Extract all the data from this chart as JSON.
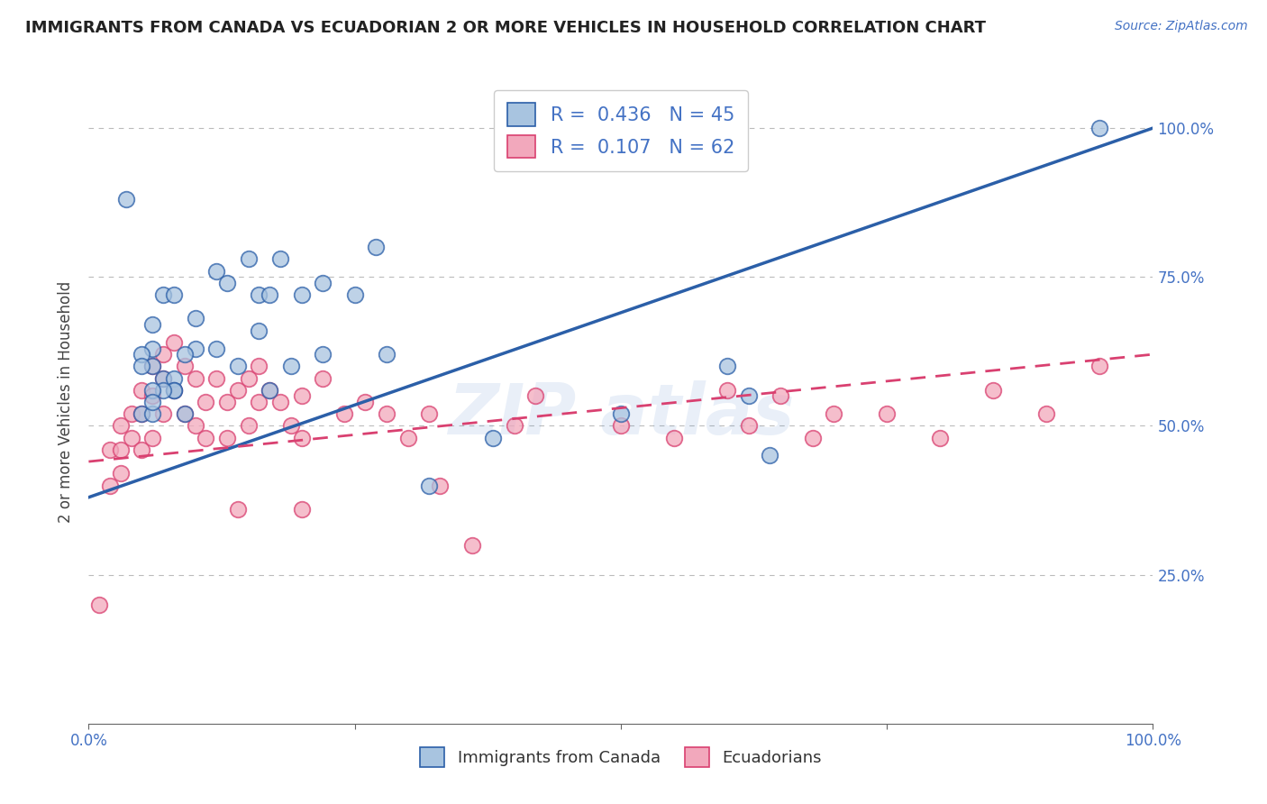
{
  "title": "IMMIGRANTS FROM CANADA VS ECUADORIAN 2 OR MORE VEHICLES IN HOUSEHOLD CORRELATION CHART",
  "source": "Source: ZipAtlas.com",
  "ylabel": "2 or more Vehicles in Household",
  "watermark": "ZIPAtlas",
  "legend1_label": "R =  0.436   N = 45",
  "legend2_label": "R =  0.107   N = 62",
  "dot1_color": "#a8c4e0",
  "dot2_color": "#f2a8bc",
  "line1_color": "#2b5fa8",
  "line2_color": "#d94070",
  "tick_color": "#4472c4",
  "title_color": "#222222",
  "ylabel_color": "#444444",
  "blue_x": [
    0.035,
    0.06,
    0.07,
    0.08,
    0.06,
    0.06,
    0.07,
    0.08,
    0.1,
    0.1,
    0.08,
    0.09,
    0.12,
    0.13,
    0.15,
    0.16,
    0.17,
    0.18,
    0.2,
    0.22,
    0.25,
    0.27,
    0.08,
    0.09,
    0.05,
    0.06,
    0.07,
    0.14,
    0.17,
    0.19,
    0.12,
    0.16,
    0.22,
    0.28,
    0.32,
    0.38,
    0.5,
    0.6,
    0.62,
    0.64,
    0.95,
    0.05,
    0.05,
    0.06,
    0.06
  ],
  "blue_y": [
    0.88,
    0.67,
    0.72,
    0.72,
    0.63,
    0.6,
    0.58,
    0.58,
    0.68,
    0.63,
    0.56,
    0.62,
    0.76,
    0.74,
    0.78,
    0.72,
    0.72,
    0.78,
    0.72,
    0.74,
    0.72,
    0.8,
    0.56,
    0.52,
    0.52,
    0.52,
    0.56,
    0.6,
    0.56,
    0.6,
    0.63,
    0.66,
    0.62,
    0.62,
    0.4,
    0.48,
    0.52,
    0.6,
    0.55,
    0.45,
    1.0,
    0.62,
    0.6,
    0.56,
    0.54
  ],
  "pink_x": [
    0.01,
    0.02,
    0.02,
    0.03,
    0.03,
    0.03,
    0.04,
    0.04,
    0.05,
    0.05,
    0.05,
    0.06,
    0.06,
    0.06,
    0.07,
    0.07,
    0.07,
    0.08,
    0.08,
    0.09,
    0.09,
    0.1,
    0.1,
    0.11,
    0.11,
    0.12,
    0.13,
    0.13,
    0.14,
    0.15,
    0.15,
    0.16,
    0.16,
    0.17,
    0.18,
    0.19,
    0.2,
    0.2,
    0.22,
    0.24,
    0.26,
    0.28,
    0.3,
    0.32,
    0.33,
    0.36,
    0.4,
    0.42,
    0.5,
    0.55,
    0.6,
    0.62,
    0.65,
    0.68,
    0.7,
    0.75,
    0.8,
    0.85,
    0.9,
    0.95,
    0.14,
    0.2
  ],
  "pink_y": [
    0.2,
    0.46,
    0.4,
    0.5,
    0.46,
    0.42,
    0.52,
    0.48,
    0.56,
    0.52,
    0.46,
    0.6,
    0.55,
    0.48,
    0.62,
    0.58,
    0.52,
    0.64,
    0.56,
    0.6,
    0.52,
    0.58,
    0.5,
    0.54,
    0.48,
    0.58,
    0.54,
    0.48,
    0.56,
    0.58,
    0.5,
    0.6,
    0.54,
    0.56,
    0.54,
    0.5,
    0.55,
    0.48,
    0.58,
    0.52,
    0.54,
    0.52,
    0.48,
    0.52,
    0.4,
    0.3,
    0.5,
    0.55,
    0.5,
    0.48,
    0.56,
    0.5,
    0.55,
    0.48,
    0.52,
    0.52,
    0.48,
    0.56,
    0.52,
    0.6,
    0.36,
    0.36
  ]
}
